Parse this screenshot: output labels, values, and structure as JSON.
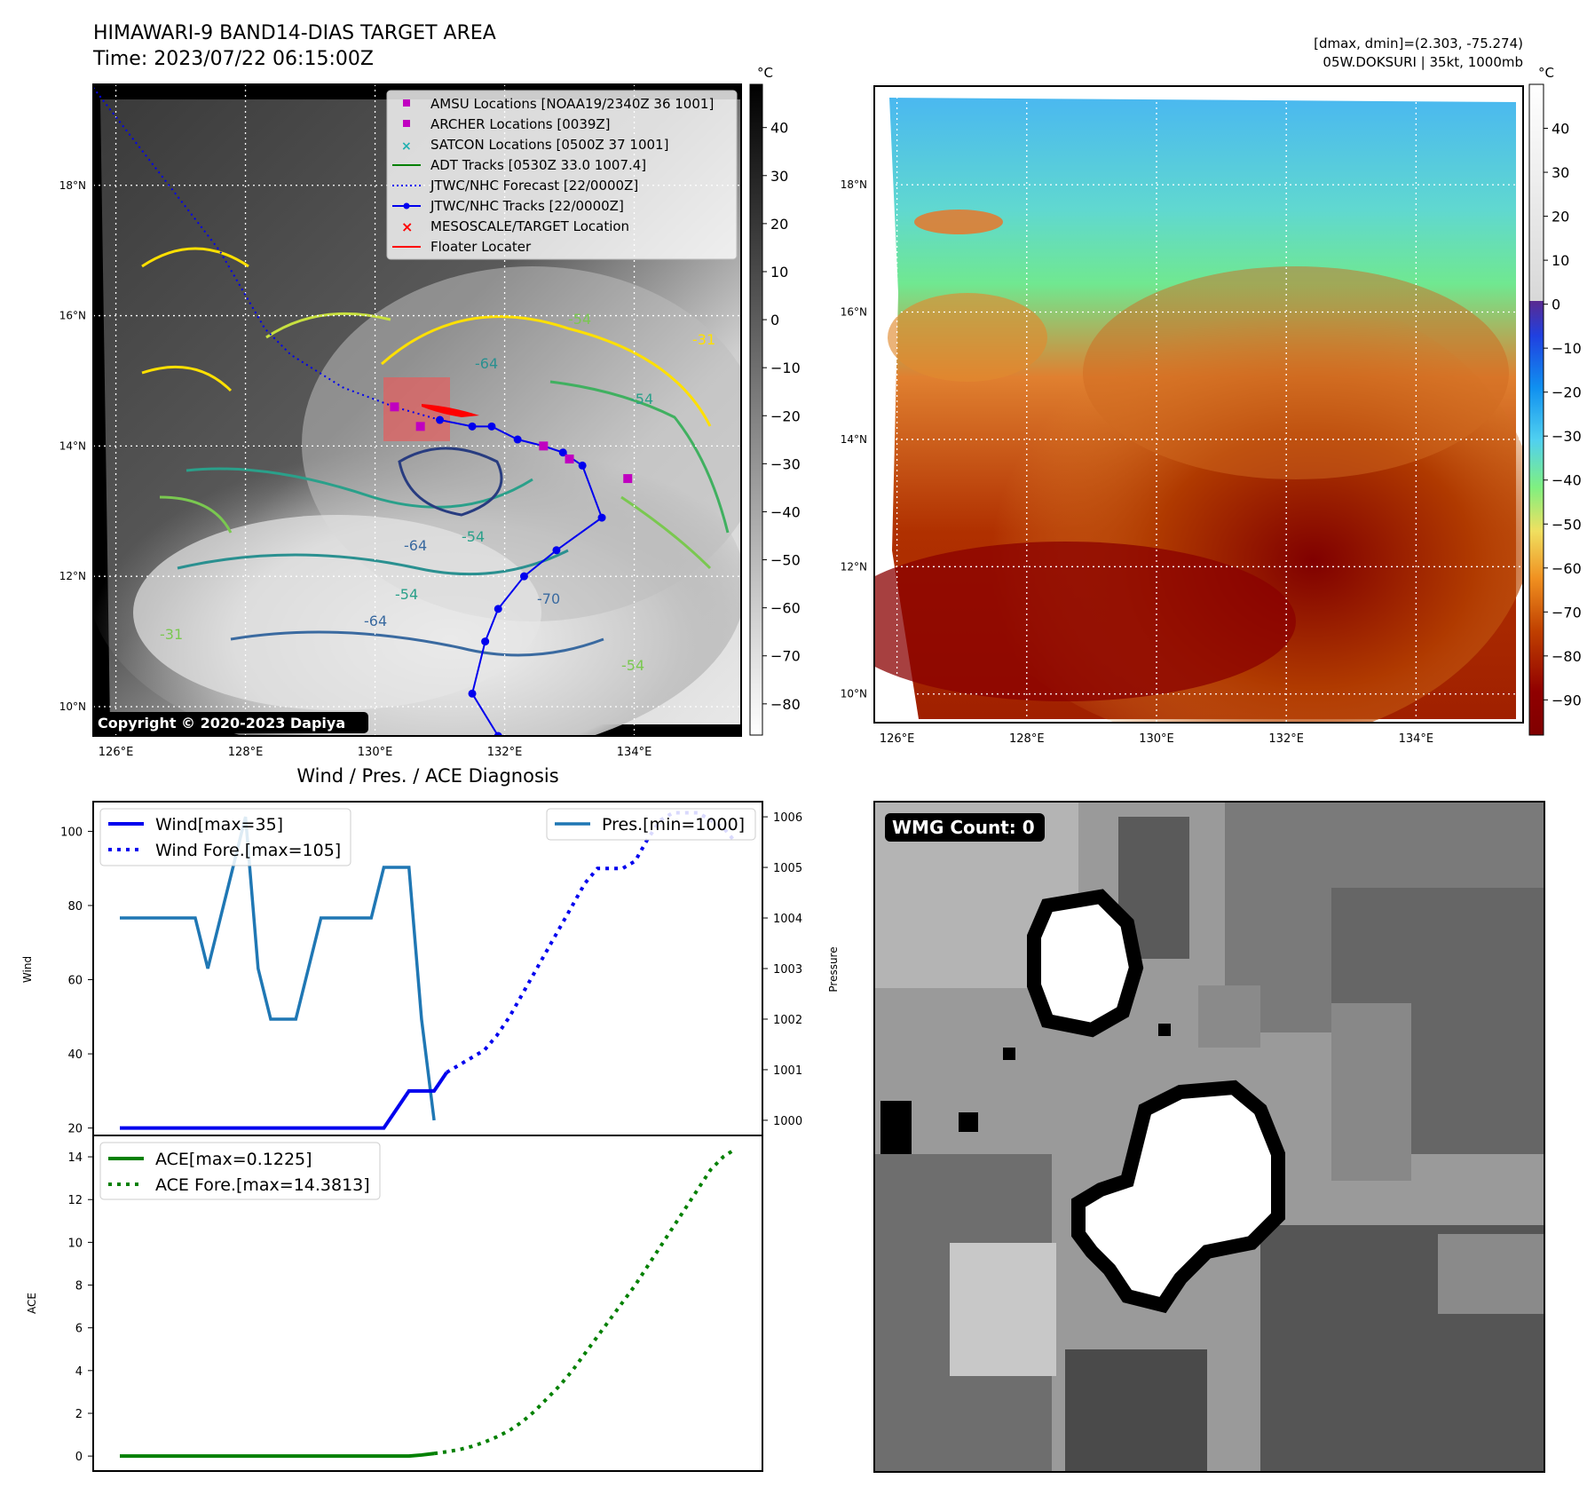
{
  "header": {
    "title": "HIMAWARI-9 BAND14-DIAS TARGET AREA",
    "time": "Time: 2023/07/22 06:15:00Z",
    "dmax_dmin": "[dmax, dmin]=(2.303, -75.274)",
    "storm": "05W.DOKSURI | 35kt, 1000mb"
  },
  "map": {
    "lat_labels": [
      "18°N",
      "16°N",
      "14°N",
      "12°N",
      "10°N"
    ],
    "lat_values": [
      18,
      16,
      14,
      12,
      10
    ],
    "lon_labels": [
      "126°E",
      "128°E",
      "130°E",
      "132°E",
      "134°E"
    ],
    "lon_values": [
      126,
      128,
      130,
      132,
      134
    ],
    "lon_range": [
      125.65,
      135.65
    ],
    "lat_range": [
      9.55,
      19.55
    ],
    "copyright": "Copyright © 2020-2023 Dapiya",
    "legend": [
      "AMSU Locations [NOAA19/2340Z 36 1001]",
      "ARCHER Locations [0039Z]",
      "SATCON Locations [0500Z 37 1001]",
      "ADT Tracks [0530Z 33.0 1007.4]",
      "JTWC/NHC Forecast [22/0000Z]",
      "JTWC/NHC Tracks [22/0000Z]",
      "MESOSCALE/TARGET Location",
      "Floater Locater"
    ],
    "contour_labels": [
      "-54",
      "-64",
      "-31",
      "-54",
      "-64",
      "-54",
      "-64",
      "-54",
      "-70",
      "-54",
      "-31"
    ],
    "track_points": [
      [
        131.0,
        14.4
      ],
      [
        131.5,
        14.3
      ],
      [
        131.8,
        14.3
      ],
      [
        132.2,
        14.1
      ],
      [
        132.6,
        14.0
      ],
      [
        132.9,
        13.9
      ],
      [
        133.2,
        13.7
      ],
      [
        133.5,
        12.9
      ],
      [
        132.8,
        12.4
      ],
      [
        132.3,
        12.0
      ],
      [
        131.9,
        11.5
      ],
      [
        131.7,
        11.0
      ],
      [
        131.5,
        10.2
      ],
      [
        131.9,
        9.55
      ]
    ],
    "forecast_points": [
      [
        125.65,
        19.5
      ],
      [
        127.6,
        17.0
      ],
      [
        128.3,
        15.8
      ],
      [
        128.7,
        15.4
      ],
      [
        129.5,
        14.9
      ],
      [
        130.3,
        14.6
      ],
      [
        131.0,
        14.4
      ]
    ],
    "amsu_points": [
      [
        130.3,
        14.6
      ],
      [
        130.7,
        14.3
      ],
      [
        132.6,
        14.0
      ],
      [
        133.0,
        13.8
      ],
      [
        133.9,
        13.5
      ]
    ],
    "colorbar_left": {
      "unit": "°C",
      "ticks": [
        40,
        30,
        20,
        10,
        0,
        -10,
        -20,
        -30,
        -40,
        -50,
        -60,
        -70,
        -80
      ]
    },
    "colorbar_right": {
      "unit": "°C",
      "ticks": [
        40,
        30,
        20,
        10,
        0,
        -10,
        -20,
        -30,
        -40,
        -50,
        -60,
        -70,
        -80,
        -90
      ]
    }
  },
  "colors": {
    "wind": "#0000ee",
    "pressure": "#1f77b4",
    "ace": "#008000",
    "amsu": "#c000c0",
    "satcon": "#20b0b0",
    "adt": "#008000",
    "jtwc": "#0000ee",
    "target": "#ff0000"
  },
  "chart_data": [
    {
      "type": "line",
      "title": "Wind / Pres. / ACE Diagnosis",
      "ylabel": "Wind",
      "ylabel_right": "Pressure",
      "ylim": [
        18,
        108
      ],
      "ylim_right": [
        999.7,
        1006.3
      ],
      "yticks": [
        20,
        40,
        60,
        80,
        100
      ],
      "yticks_right": [
        1000,
        1001,
        1002,
        1003,
        1004,
        1005,
        1006
      ],
      "x": [
        0,
        1,
        2,
        3,
        4,
        5,
        6,
        7,
        8,
        9,
        10,
        11,
        12,
        13,
        14,
        15,
        16,
        17,
        18,
        19,
        20,
        21,
        22,
        23,
        24,
        25,
        26,
        27,
        28,
        29,
        30,
        31,
        32,
        33,
        34,
        35,
        36,
        37,
        38,
        39,
        40,
        41,
        42,
        43,
        44,
        45,
        46,
        47,
        48,
        49
      ],
      "legend_left": [
        "Wind[max=35]",
        "Wind Fore.[max=105]"
      ],
      "legend_right": [
        "Pres.[min=1000]"
      ],
      "series": [
        {
          "name": "Wind[max=35]",
          "axis": "left",
          "style": "solid",
          "values": [
            20,
            20,
            20,
            20,
            20,
            20,
            20,
            20,
            20,
            20,
            20,
            20,
            20,
            20,
            20,
            20,
            20,
            20,
            20,
            20,
            20,
            20,
            25,
            30,
            30,
            30,
            35,
            null,
            null,
            null,
            null,
            null,
            null,
            null,
            null,
            null,
            null,
            null,
            null,
            null,
            null,
            null,
            null,
            null,
            null,
            null,
            null,
            null,
            null,
            null
          ]
        },
        {
          "name": "Wind Fore.[max=105]",
          "axis": "left",
          "style": "dotted",
          "values": [
            null,
            null,
            null,
            null,
            null,
            null,
            null,
            null,
            null,
            null,
            null,
            null,
            null,
            null,
            null,
            null,
            null,
            null,
            null,
            null,
            null,
            null,
            null,
            null,
            null,
            null,
            35,
            37,
            39,
            41,
            45,
            50,
            56,
            62,
            68,
            74,
            80,
            86,
            90,
            90,
            90,
            92,
            98,
            103,
            105,
            105,
            105,
            103,
            101,
            97
          ]
        },
        {
          "name": "Pres.[min=1000]",
          "axis": "right",
          "style": "solid",
          "values": [
            1004,
            1004,
            1004,
            1004,
            1004,
            1004,
            1004,
            1003,
            1004,
            1005,
            1006,
            1003,
            1002,
            1002,
            1002,
            1003,
            1004,
            1004,
            1004,
            1004,
            1004,
            1005,
            1005,
            1005,
            1002,
            1000,
            null,
            null,
            null,
            null,
            null,
            null,
            null,
            null,
            null,
            null,
            null,
            null,
            null,
            null,
            null,
            null,
            null,
            null,
            null,
            null,
            null,
            null,
            null,
            null
          ]
        }
      ]
    },
    {
      "type": "line",
      "ylabel": "ACE",
      "ylim": [
        -0.7,
        15
      ],
      "yticks": [
        0,
        2,
        4,
        6,
        8,
        10,
        12,
        14
      ],
      "x": [
        0,
        1,
        2,
        3,
        4,
        5,
        6,
        7,
        8,
        9,
        10,
        11,
        12,
        13,
        14,
        15,
        16,
        17,
        18,
        19,
        20,
        21,
        22,
        23,
        24,
        25,
        26,
        27,
        28,
        29,
        30,
        31,
        32,
        33,
        34,
        35,
        36,
        37,
        38,
        39,
        40,
        41,
        42,
        43,
        44,
        45,
        46,
        47,
        48,
        49
      ],
      "legend": [
        "ACE[max=0.1225]",
        "ACE Fore.[max=14.3813]"
      ],
      "series": [
        {
          "name": "ACE[max=0.1225]",
          "style": "solid",
          "values": [
            0,
            0,
            0,
            0,
            0,
            0,
            0,
            0,
            0,
            0,
            0,
            0,
            0,
            0,
            0,
            0,
            0,
            0,
            0,
            0,
            0,
            0,
            0,
            0,
            0.05,
            0.12,
            null,
            null,
            null,
            null,
            null,
            null,
            null,
            null,
            null,
            null,
            null,
            null,
            null,
            null,
            null,
            null,
            null,
            null,
            null,
            null,
            null,
            null,
            null,
            null
          ]
        },
        {
          "name": "ACE Fore.[max=14.3813]",
          "style": "dotted",
          "values": [
            null,
            null,
            null,
            null,
            null,
            null,
            null,
            null,
            null,
            null,
            null,
            null,
            null,
            null,
            null,
            null,
            null,
            null,
            null,
            null,
            null,
            null,
            null,
            null,
            null,
            0.12,
            0.2,
            0.3,
            0.45,
            0.65,
            0.9,
            1.2,
            1.6,
            2.1,
            2.7,
            3.3,
            4.0,
            4.8,
            5.6,
            6.4,
            7.2,
            8.0,
            8.9,
            9.8,
            10.7,
            11.6,
            12.5,
            13.4,
            14.0,
            14.38
          ]
        }
      ]
    }
  ],
  "wmg": {
    "label": "WMG Count: 0"
  }
}
